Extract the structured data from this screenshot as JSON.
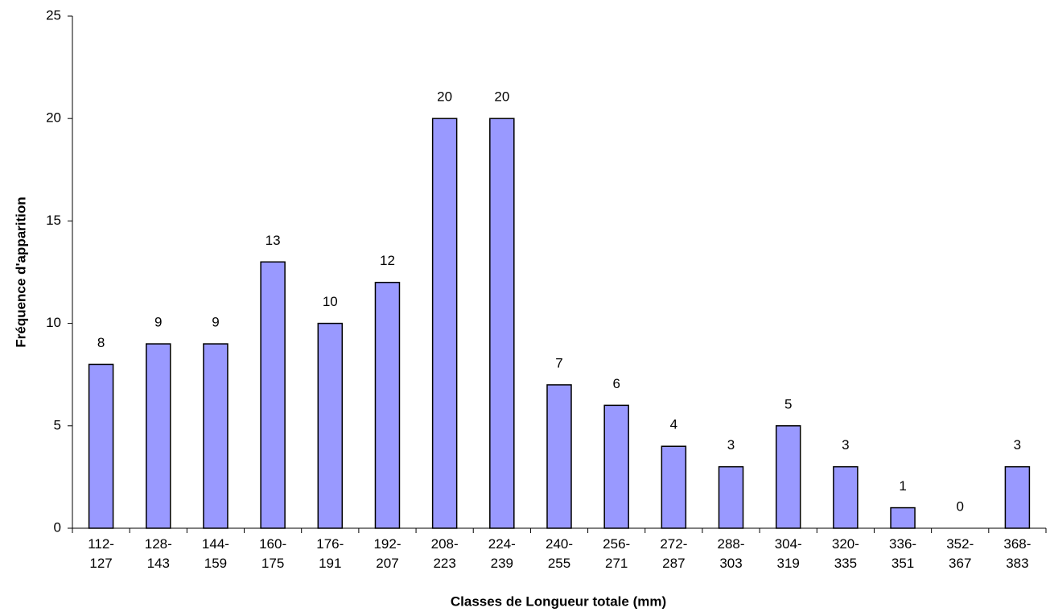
{
  "chart_data": {
    "type": "bar",
    "x_label": "Classes de Longueur totale (mm)",
    "y_label": "Fréquence d'apparition",
    "categories": [
      "112-127",
      "128-143",
      "144-159",
      "160-175",
      "176-191",
      "192-207",
      "208-223",
      "224-239",
      "240-255",
      "256-271",
      "272-287",
      "288-303",
      "304-319",
      "320-335",
      "336-351",
      "352-367",
      "368-383"
    ],
    "values": [
      8,
      9,
      9,
      13,
      10,
      12,
      20,
      20,
      7,
      6,
      4,
      3,
      5,
      3,
      1,
      0,
      3
    ],
    "color": "#9999ff",
    "ylim": [
      0,
      25
    ],
    "yticks": [
      0,
      5,
      10,
      15,
      20,
      25
    ],
    "grid": false
  }
}
